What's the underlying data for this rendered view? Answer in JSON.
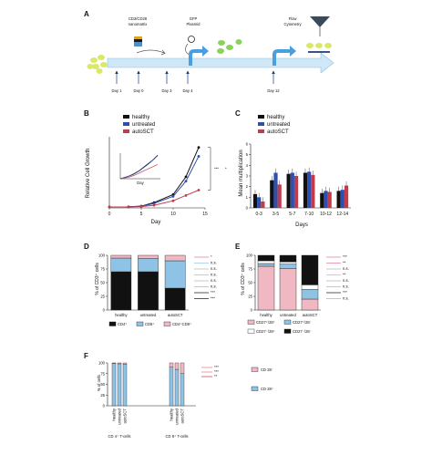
{
  "panels": {
    "A": "A",
    "B": "B",
    "C": "C",
    "D": "D",
    "E": "E",
    "F": "F"
  },
  "timeline": {
    "labels": [
      "CD3/CD28",
      "nanomatrix",
      "GFP",
      "Plasmid",
      "Flow",
      "Cytometry"
    ],
    "days": [
      "Day 1",
      "Day 0",
      "Day 3",
      "Day 4",
      "Day 12"
    ]
  },
  "colors": {
    "healthy": "#111111",
    "untreated": "#2f4fb0",
    "autoSCT": "#c23b4a",
    "cd4": "#111111",
    "cd8": "#8fc3e6",
    "cd4cd8": "#f0b8c3",
    "ccr7": "#f0b8c3",
    "cd27cd28": "#8fc3e6",
    "timeline": "#cfe8f7",
    "cell": "#d9e86a",
    "gfp": "#8ad25a"
  },
  "chart_data": [
    {
      "id": "B",
      "type": "line",
      "xlabel": "Day",
      "ylabel": "Relative Cell Growth",
      "xticks": [
        0,
        5,
        10,
        15
      ],
      "legend": [
        "healthy",
        "untreated",
        "autoSCT"
      ],
      "series": [
        {
          "name": "healthy",
          "x": [
            0,
            3,
            5,
            7,
            10,
            12,
            14
          ],
          "y": [
            1,
            1.2,
            2,
            6,
            15,
            35,
            68
          ]
        },
        {
          "name": "untreated",
          "x": [
            0,
            3,
            5,
            7,
            10,
            12,
            14
          ],
          "y": [
            1,
            1.1,
            1.8,
            5,
            13,
            30,
            58
          ]
        },
        {
          "name": "autoSCT",
          "x": [
            0,
            3,
            5,
            7,
            10,
            12,
            14
          ],
          "y": [
            1,
            1.05,
            1.4,
            3,
            8,
            14,
            20
          ]
        }
      ],
      "inset": {
        "xlabel": "Day",
        "series": [
          {
            "name": "healthy",
            "x": [
              0,
              3,
              5,
              7,
              10,
              12,
              14
            ],
            "y": [
              1,
              2,
              4,
              10,
              60,
              200,
              900
            ]
          },
          {
            "name": "untreated",
            "x": [
              0,
              3,
              5,
              7,
              10,
              12,
              14
            ],
            "y": [
              1,
              2,
              3.5,
              9,
              50,
              180,
              800
            ]
          },
          {
            "name": "autoSCT",
            "x": [
              0,
              3,
              5,
              7,
              10,
              12,
              14
            ],
            "y": [
              1,
              1.5,
              2.5,
              5,
              15,
              30,
              60
            ]
          }
        ]
      },
      "annotations": [
        "***",
        "*"
      ]
    },
    {
      "id": "C",
      "type": "bar",
      "xlabel": "Days",
      "ylabel": "Mean multiplication",
      "yticks": [
        0,
        1,
        2,
        3,
        4,
        5,
        6
      ],
      "ylim": [
        0,
        6
      ],
      "legend": [
        "healthy",
        "untreated",
        "autoSCT"
      ],
      "categories": [
        "0-3",
        "3-5",
        "5-7",
        "7-10",
        "10-12",
        "12-14"
      ],
      "series": [
        {
          "name": "healthy",
          "values": [
            1.3,
            2.6,
            3.2,
            3.3,
            1.4,
            1.6
          ]
        },
        {
          "name": "untreated",
          "values": [
            1.0,
            3.3,
            3.3,
            3.4,
            1.6,
            1.7
          ]
        },
        {
          "name": "autoSCT",
          "values": [
            0.6,
            2.2,
            3.0,
            3.1,
            1.5,
            2.1
          ]
        }
      ]
    },
    {
      "id": "D",
      "type": "bar",
      "ylabel": "% of CD3⁺ cells",
      "yticks": [
        0,
        25,
        50,
        75,
        100
      ],
      "ylim": [
        0,
        100
      ],
      "categories": [
        "healthy",
        "untreated",
        "autoSCT"
      ],
      "legend": [
        "CD4⁺",
        "CD8⁺",
        "CD4⁺CD8⁺"
      ],
      "series": [
        {
          "name": "CD4⁺",
          "values": [
            70,
            70,
            40
          ]
        },
        {
          "name": "CD8⁺",
          "values": [
            25,
            24,
            50
          ]
        },
        {
          "name": "CD4⁺CD8⁺",
          "values": [
            5,
            6,
            10
          ]
        }
      ],
      "annotations": [
        "*",
        "n.s.",
        "n.s.",
        "n.s.",
        "n.s.",
        "n.s.",
        "***",
        "***"
      ]
    },
    {
      "id": "E",
      "type": "bar",
      "ylabel": "% of CD3⁺ cells",
      "yticks": [
        0,
        25,
        50,
        75,
        100
      ],
      "ylim": [
        0,
        100
      ],
      "categories": [
        "healthy",
        "untreated",
        "autoSCT"
      ],
      "legend": [
        "CD27⁺/28⁺",
        "CD27⁺/28⁻",
        "CD27⁻/28⁺",
        "CD27⁻/28⁻"
      ],
      "series": [
        {
          "name": "CD27⁺/28⁺",
          "values": [
            80,
            76,
            20
          ]
        },
        {
          "name": "CD27⁺/28⁻",
          "values": [
            5,
            8,
            18
          ]
        },
        {
          "name": "CD27⁻/28⁺",
          "values": [
            5,
            4,
            8
          ]
        },
        {
          "name": "CD27⁻/28⁻",
          "values": [
            10,
            12,
            54
          ]
        }
      ],
      "annotations": [
        "***",
        "**",
        "n.s.",
        "**",
        "n.s.",
        "n.s.",
        "***",
        "n.s."
      ]
    },
    {
      "id": "F",
      "type": "bar",
      "ylabel": "% of cells",
      "yticks": [
        0,
        25,
        50,
        75,
        100
      ],
      "ylim": [
        0,
        100
      ],
      "groups": [
        "CD 4⁺ T-cells",
        "CD 8⁺ T-cells"
      ],
      "categories": [
        "healthy",
        "untreated",
        "autoSCT",
        "healthy",
        "untreated",
        "autoSCT"
      ],
      "legend": [
        "CD 28⁻",
        "CD 28⁺"
      ],
      "series": [
        {
          "name": "CD 28⁺",
          "values": [
            99,
            98,
            97,
            90,
            85,
            75
          ]
        },
        {
          "name": "CD 28⁻",
          "values": [
            1,
            2,
            3,
            10,
            15,
            25
          ]
        }
      ],
      "annotations": [
        "***",
        "***",
        "**"
      ]
    }
  ]
}
